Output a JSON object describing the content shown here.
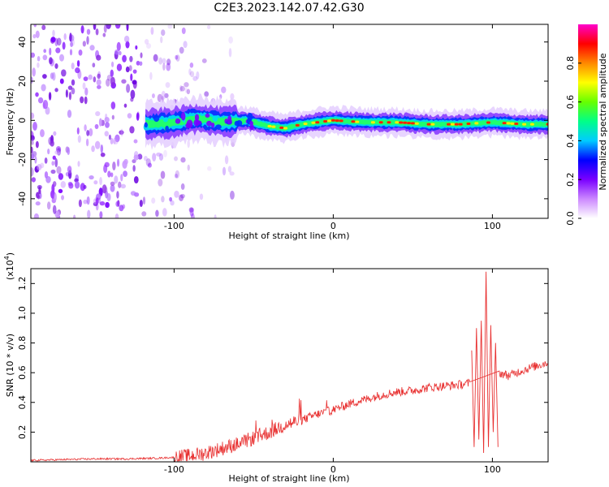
{
  "title": "C2E3.2023.142.07.42.G30",
  "chart_data": [
    {
      "type": "heatmap",
      "xlabel": "Height of straight line (km)",
      "ylabel": "Frequency (Hz)",
      "xlim": [
        -190,
        135
      ],
      "ylim": [
        -50,
        49
      ],
      "xticks": [
        -100,
        0,
        100
      ],
      "yticks": [
        -40,
        -20,
        0,
        20,
        40
      ],
      "colorbar": {
        "label": "Normalized spectral amplitude",
        "range": [
          0,
          1
        ],
        "ticks": [
          "0.0",
          "0.2",
          "0.4",
          "0.6",
          "0.8"
        ],
        "colors": [
          "#ffffff",
          "#cc88ff",
          "#7a00ff",
          "#0000ff",
          "#00ccff",
          "#00ff88",
          "#66ff00",
          "#ffff00",
          "#ff8800",
          "#ff0000",
          "#ff00cc"
        ]
      },
      "ridge_center_hz": [
        {
          "x": -115,
          "y": -2
        },
        {
          "x": -100,
          "y": -1
        },
        {
          "x": -85,
          "y": 1
        },
        {
          "x": -70,
          "y": -1
        },
        {
          "x": -55,
          "y": 0
        },
        {
          "x": -40,
          "y": -3
        },
        {
          "x": -30,
          "y": -4
        },
        {
          "x": -20,
          "y": -2
        },
        {
          "x": -10,
          "y": -1
        },
        {
          "x": 0,
          "y": 0
        },
        {
          "x": 20,
          "y": -1
        },
        {
          "x": 40,
          "y": -1
        },
        {
          "x": 60,
          "y": -2
        },
        {
          "x": 80,
          "y": -2
        },
        {
          "x": 100,
          "y": -1
        },
        {
          "x": 120,
          "y": -2
        },
        {
          "x": 135,
          "y": -2
        }
      ]
    },
    {
      "type": "line",
      "xlabel": "Height of straight line (km)",
      "ylabel": "SNR (10 * v/v)",
      "y_multiplier": "(x10",
      "y_multiplier_exp": "4",
      "y_multiplier_close": ")",
      "xlim": [
        -190,
        135
      ],
      "ylim": [
        0,
        1.3
      ],
      "xticks": [
        -100,
        0,
        100
      ],
      "yticks": [
        "0.2",
        "0.4",
        "0.6",
        "0.8",
        "1.0",
        "1.2"
      ],
      "color": "#e83030",
      "series": [
        {
          "x": [
            -190,
            -170,
            -150,
            -130,
            -110,
            -100,
            -90,
            -80,
            -70,
            -60,
            -50,
            -40,
            -30,
            -20,
            -10,
            0,
            10,
            20,
            30,
            40,
            50,
            60,
            70,
            80,
            86,
            88,
            90,
            92,
            94,
            96,
            98,
            100,
            102,
            104,
            110,
            120,
            135
          ],
          "y": [
            0.01,
            0.015,
            0.02,
            0.02,
            0.025,
            0.03,
            0.04,
            0.06,
            0.09,
            0.12,
            0.16,
            0.2,
            0.25,
            0.28,
            0.32,
            0.35,
            0.39,
            0.42,
            0.45,
            0.47,
            0.48,
            0.5,
            0.51,
            0.52,
            0.53,
            0.52,
            0.3,
            0.5,
            0.1,
            0.9,
            0.2,
            0.6,
            0.1,
            0.6,
            0.58,
            0.62,
            0.67
          ]
        }
      ],
      "spikes": [
        {
          "x": 87,
          "y": 0.75
        },
        {
          "x": 88.5,
          "y": 0.1
        },
        {
          "x": 90,
          "y": 0.9
        },
        {
          "x": 91.5,
          "y": 0.15
        },
        {
          "x": 93,
          "y": 0.95
        },
        {
          "x": 94.5,
          "y": 0.06
        },
        {
          "x": 96,
          "y": 1.28
        },
        {
          "x": 97.5,
          "y": 0.1
        },
        {
          "x": 99,
          "y": 0.92
        },
        {
          "x": 100.5,
          "y": 0.2
        },
        {
          "x": 102,
          "y": 0.8
        },
        {
          "x": 103.5,
          "y": 0.1
        }
      ]
    }
  ]
}
